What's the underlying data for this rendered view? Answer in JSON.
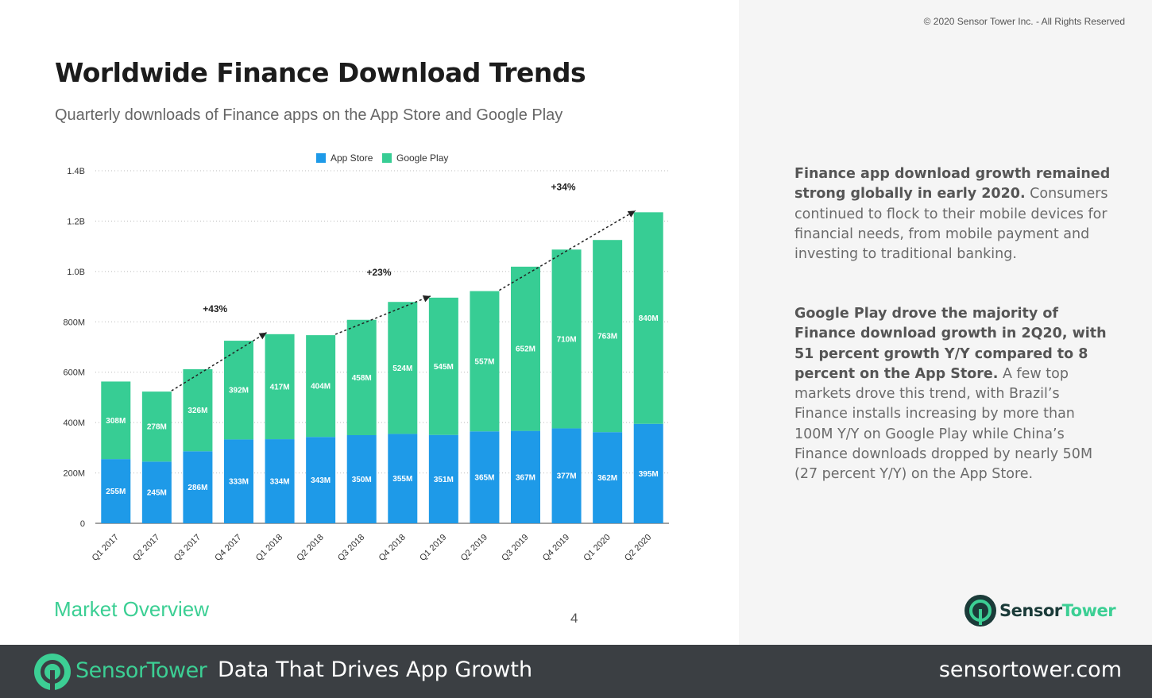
{
  "copyright": "© 2020 Sensor Tower Inc. - All Rights Reserved",
  "chart_data": {
    "type": "bar",
    "stacked": true,
    "title": "Worldwide Finance Download Trends",
    "subtitle": "Quarterly downloads of Finance apps on the App Store and Google Play",
    "categories": [
      "Q1 2017",
      "Q2 2017",
      "Q3 2017",
      "Q4 2017",
      "Q1 2018",
      "Q2 2018",
      "Q3 2018",
      "Q4 2018",
      "Q1 2019",
      "Q2 2019",
      "Q3 2019",
      "Q4 2019",
      "Q1 2020",
      "Q2 2020"
    ],
    "series": [
      {
        "name": "App Store",
        "values": [
          255,
          245,
          286,
          333,
          334,
          343,
          350,
          355,
          351,
          365,
          367,
          377,
          362,
          395
        ],
        "labels": [
          "255M",
          "245M",
          "286M",
          "333M",
          "334M",
          "343M",
          "350M",
          "355M",
          "351M",
          "365M",
          "367M",
          "377M",
          "362M",
          "395M"
        ]
      },
      {
        "name": "Google Play",
        "values": [
          308,
          278,
          326,
          392,
          417,
          404,
          458,
          524,
          545,
          557,
          652,
          710,
          763,
          840
        ],
        "labels": [
          "308M",
          "278M",
          "326M",
          "392M",
          "417M",
          "404M",
          "458M",
          "524M",
          "545M",
          "557M",
          "652M",
          "710M",
          "763M",
          "840M"
        ]
      }
    ],
    "ylim": [
      0,
      1400
    ],
    "yticks": [
      0,
      200,
      400,
      600,
      800,
      1000,
      1200,
      1400
    ],
    "ytick_labels": [
      "0",
      "200M",
      "400M",
      "600M",
      "800M",
      "1.0B",
      "1.2B",
      "1.4B"
    ],
    "grid": true,
    "legend_position": "top-center",
    "annotations": [
      {
        "text": "+43%",
        "from_category": "Q2 2017",
        "to_category": "Q1 2018"
      },
      {
        "text": "+23%",
        "from_category": "Q2 2018",
        "to_category": "Q1 2019"
      },
      {
        "text": "+34%",
        "from_category": "Q2 2019",
        "to_category": "Q2 2020"
      }
    ]
  },
  "colors": {
    "app_store": "#1e9ae8",
    "google_play": "#37cd94",
    "accent": "#3ccf94"
  },
  "insights": {
    "p1_bold": "Finance app download growth remained strong globally in early 2020.",
    "p1_rest": " Consumers continued to flock to their mobile devices for financial needs, from mobile payment and investing to traditional banking.",
    "p2_bold": "Google Play drove the majority of Finance download growth in 2Q20, with 51 percent growth Y/Y compared to 8 percent on the App Store.",
    "p2_rest": " A few top markets drove this trend, with Brazil’s Finance installs increasing by more than 100M Y/Y on Google Play while China’s Finance downloads dropped by nearly 50M (27 percent Y/Y) on the App Store."
  },
  "section": "Market Overview",
  "page_number": "4",
  "logo": {
    "part1": "Sensor",
    "part2": "Tower"
  },
  "footer": {
    "tagline": "Data That Drives App Growth",
    "url": "sensortower.com"
  }
}
